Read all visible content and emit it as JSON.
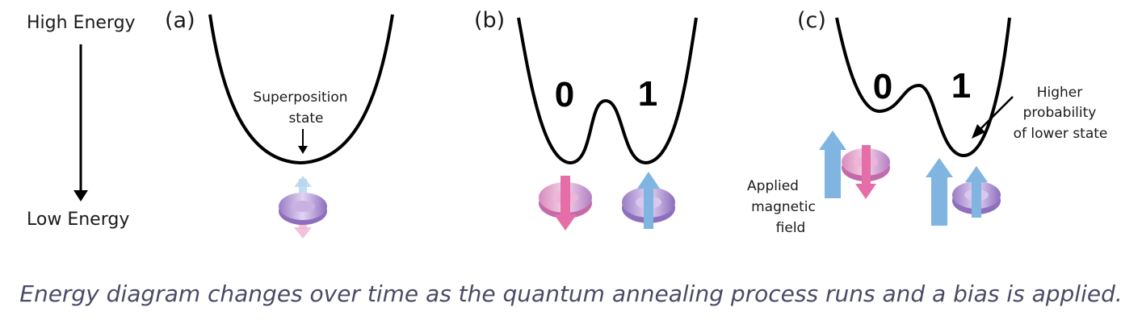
{
  "axis": {
    "top_label": "High Energy",
    "bottom_label": "Low Energy"
  },
  "panels": [
    {
      "tag": "(a)",
      "annotation_line1": "Superposition",
      "annotation_line2": "state"
    },
    {
      "tag": "(b)",
      "state0": "0",
      "state1": "1"
    },
    {
      "tag": "(c)",
      "state0": "0",
      "state1": "1",
      "annotation_line1": "Higher",
      "annotation_line2": "probability",
      "annotation_line3": "of lower state",
      "field_line1": "Applied",
      "field_line2": "magnetic",
      "field_line3": "field"
    }
  ],
  "caption": "Energy diagram changes over time as the quantum annealing process runs and a bias is applied.",
  "colors": {
    "pink": "#e56ea8",
    "blue": "#7fb5e0",
    "ring": "#b79ad6",
    "line": "#000000",
    "caption": "#4a4a66"
  }
}
